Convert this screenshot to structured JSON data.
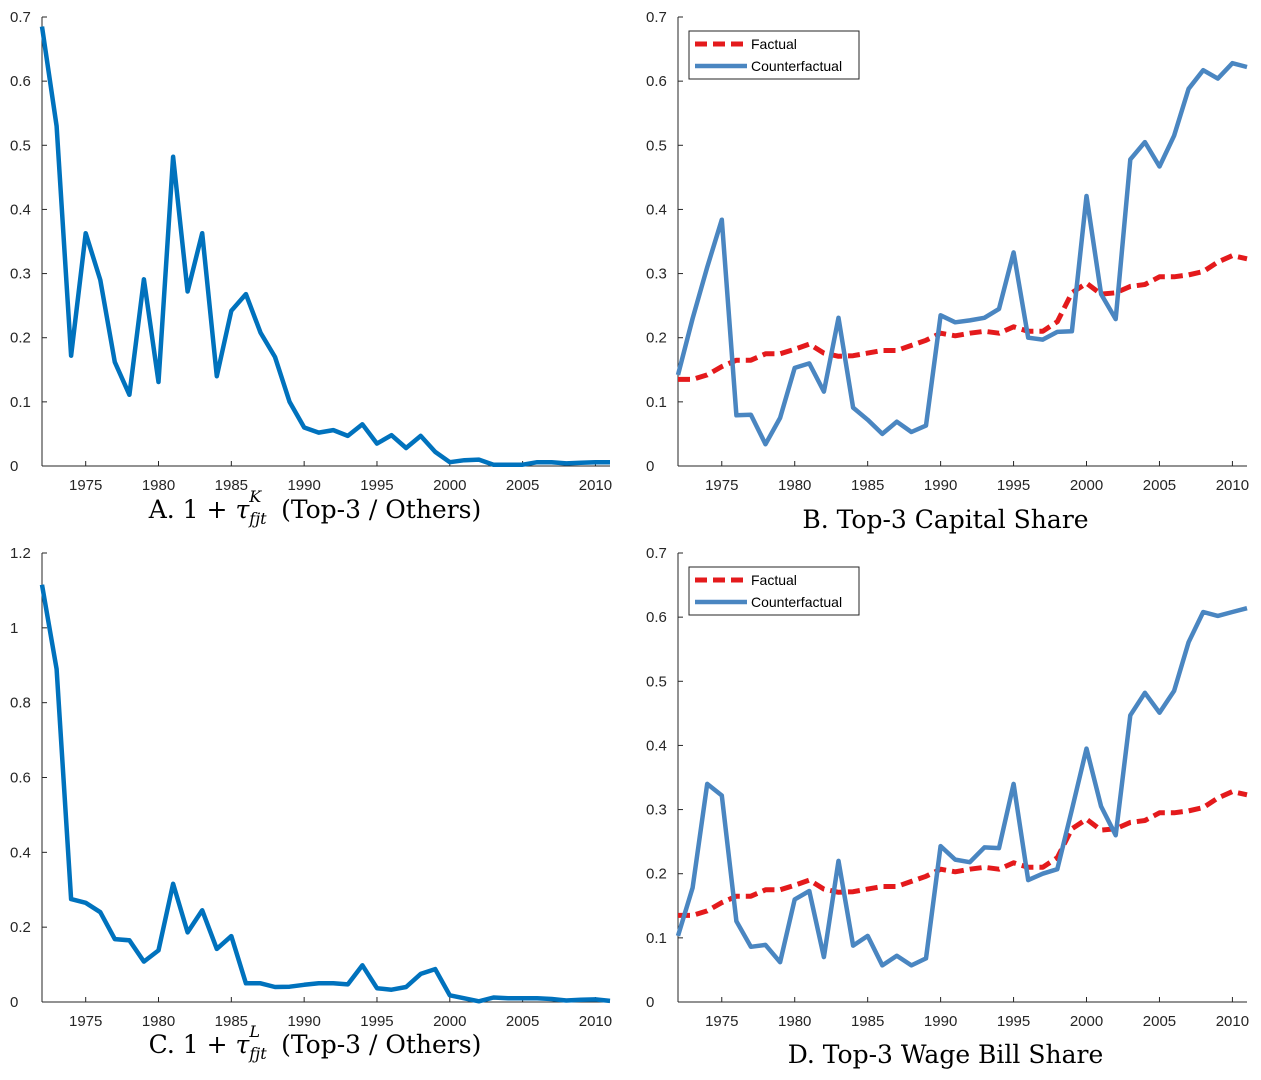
{
  "panels": [
    {
      "caption_prefix": "A. 1 +",
      "caption_symbol": "τ",
      "caption_sup": "K",
      "caption_sub": "fjt",
      "caption_suffix": "(Top-3 / Others)"
    },
    {
      "caption_text": "B. Top-3 Capital Share"
    },
    {
      "caption_prefix": "C. 1 +",
      "caption_symbol": "τ",
      "caption_sup": "L",
      "caption_sub": "fjt",
      "caption_suffix": "(Top-3 / Others)"
    },
    {
      "caption_text": "D. Top-3 Wage Bill Share"
    }
  ],
  "colors": {
    "wedge_line": "#0072BD",
    "factual": "#E41A1C",
    "counterfactual": "#4A86C1",
    "axis": "#262626"
  },
  "chart_data": [
    {
      "type": "line",
      "title": "A. 1 + τ^K_fjt (Top-3 / Others)",
      "xlim": [
        1972,
        2011
      ],
      "ylim": [
        0,
        0.7
      ],
      "xticks": [
        1975,
        1980,
        1985,
        1990,
        1995,
        2000,
        2005,
        2010
      ],
      "yticks": [
        "0",
        "0.1",
        "0.2",
        "0.3",
        "0.4",
        "0.5",
        "0.6",
        "0.7"
      ],
      "grid": false,
      "legend": "none",
      "x": [
        1972,
        1973,
        1974,
        1975,
        1976,
        1977,
        1978,
        1979,
        1980,
        1981,
        1982,
        1983,
        1984,
        1985,
        1986,
        1987,
        1988,
        1989,
        1990,
        1991,
        1992,
        1993,
        1994,
        1995,
        1996,
        1997,
        1998,
        1999,
        2000,
        2001,
        2002,
        2003,
        2004,
        2005,
        2006,
        2007,
        2008,
        2009,
        2010,
        2011
      ],
      "series": [
        {
          "color_key": "wedge_line",
          "style": "solid",
          "values": [
            0.685,
            0.53,
            0.172,
            0.363,
            0.29,
            0.162,
            0.111,
            0.291,
            0.131,
            0.482,
            0.272,
            0.363,
            0.14,
            0.242,
            0.268,
            0.208,
            0.17,
            0.1,
            0.06,
            0.052,
            0.056,
            0.047,
            0.065,
            0.035,
            0.048,
            0.028,
            0.047,
            0.022,
            0.006,
            0.009,
            0.01,
            0.002,
            0.002,
            0.002,
            0.006,
            0.006,
            0.004,
            0.005,
            0.006,
            0.006
          ]
        }
      ]
    },
    {
      "type": "line",
      "title": "B. Top-3 Capital Share",
      "xlim": [
        1972,
        2011
      ],
      "ylim": [
        0,
        0.7
      ],
      "xticks": [
        1975,
        1980,
        1985,
        1990,
        1995,
        2000,
        2005,
        2010
      ],
      "yticks": [
        "0",
        "0.1",
        "0.2",
        "0.3",
        "0.4",
        "0.5",
        "0.6",
        "0.7"
      ],
      "grid": false,
      "legend": "top-left",
      "x": [
        1972,
        1973,
        1974,
        1975,
        1976,
        1977,
        1978,
        1979,
        1980,
        1981,
        1982,
        1983,
        1984,
        1985,
        1986,
        1987,
        1988,
        1989,
        1990,
        1991,
        1992,
        1993,
        1994,
        1995,
        1996,
        1997,
        1998,
        1999,
        2000,
        2001,
        2002,
        2003,
        2004,
        2005,
        2006,
        2007,
        2008,
        2009,
        2010,
        2011
      ],
      "series": [
        {
          "name": "Factual",
          "color_key": "factual",
          "style": "dashed",
          "values": [
            0.135,
            0.135,
            0.142,
            0.155,
            0.165,
            0.165,
            0.175,
            0.175,
            0.182,
            0.19,
            0.176,
            0.171,
            0.172,
            0.176,
            0.18,
            0.18,
            0.188,
            0.196,
            0.207,
            0.203,
            0.207,
            0.21,
            0.207,
            0.217,
            0.21,
            0.21,
            0.225,
            0.27,
            0.285,
            0.268,
            0.27,
            0.28,
            0.283,
            0.295,
            0.295,
            0.298,
            0.303,
            0.318,
            0.328,
            0.323
          ]
        },
        {
          "name": "Counterfactual",
          "color_key": "counterfactual",
          "style": "solid",
          "values": [
            0.142,
            0.23,
            0.31,
            0.384,
            0.079,
            0.08,
            0.034,
            0.075,
            0.153,
            0.16,
            0.116,
            0.231,
            0.091,
            0.072,
            0.05,
            0.069,
            0.053,
            0.063,
            0.235,
            0.224,
            0.227,
            0.231,
            0.245,
            0.333,
            0.2,
            0.197,
            0.209,
            0.21,
            0.421,
            0.268,
            0.229,
            0.478,
            0.505,
            0.467,
            0.515,
            0.588,
            0.617,
            0.604,
            0.628,
            0.622
          ]
        }
      ]
    },
    {
      "type": "line",
      "title": "C. 1 + τ^L_fjt (Top-3 / Others)",
      "xlim": [
        1972,
        2011
      ],
      "ylim": [
        0,
        1.2
      ],
      "xticks": [
        1975,
        1980,
        1985,
        1990,
        1995,
        2000,
        2005,
        2010
      ],
      "yticks": [
        "0",
        "0.2",
        "0.4",
        "0.6",
        "0.8",
        "1",
        "1.2"
      ],
      "grid": false,
      "legend": "none",
      "x": [
        1972,
        1973,
        1974,
        1975,
        1976,
        1977,
        1978,
        1979,
        1980,
        1981,
        1982,
        1983,
        1984,
        1985,
        1986,
        1987,
        1988,
        1989,
        1990,
        1991,
        1992,
        1993,
        1994,
        1995,
        1996,
        1997,
        1998,
        1999,
        2000,
        2001,
        2002,
        2003,
        2004,
        2005,
        2006,
        2007,
        2008,
        2009,
        2010,
        2011
      ],
      "series": [
        {
          "color_key": "wedge_line",
          "style": "solid",
          "values": [
            1.115,
            0.89,
            0.275,
            0.265,
            0.24,
            0.168,
            0.165,
            0.108,
            0.138,
            0.316,
            0.186,
            0.245,
            0.142,
            0.176,
            0.05,
            0.05,
            0.04,
            0.041,
            0.046,
            0.05,
            0.05,
            0.047,
            0.098,
            0.037,
            0.033,
            0.04,
            0.075,
            0.088,
            0.018,
            0.01,
            0.002,
            0.012,
            0.01,
            0.01,
            0.01,
            0.008,
            0.004,
            0.006,
            0.007,
            0.003
          ]
        }
      ]
    },
    {
      "type": "line",
      "title": "D. Top-3 Wage Bill Share",
      "xlim": [
        1972,
        2011
      ],
      "ylim": [
        0,
        0.7
      ],
      "xticks": [
        1975,
        1980,
        1985,
        1990,
        1995,
        2000,
        2005,
        2010
      ],
      "yticks": [
        "0",
        "0.1",
        "0.2",
        "0.3",
        "0.4",
        "0.5",
        "0.6",
        "0.7"
      ],
      "grid": false,
      "legend": "top-left",
      "x": [
        1972,
        1973,
        1974,
        1975,
        1976,
        1977,
        1978,
        1979,
        1980,
        1981,
        1982,
        1983,
        1984,
        1985,
        1986,
        1987,
        1988,
        1989,
        1990,
        1991,
        1992,
        1993,
        1994,
        1995,
        1996,
        1997,
        1998,
        1999,
        2000,
        2001,
        2002,
        2003,
        2004,
        2005,
        2006,
        2007,
        2008,
        2009,
        2010,
        2011
      ],
      "series": [
        {
          "name": "Factual",
          "color_key": "factual",
          "style": "dashed",
          "values": [
            0.135,
            0.135,
            0.142,
            0.155,
            0.165,
            0.165,
            0.175,
            0.175,
            0.182,
            0.19,
            0.176,
            0.171,
            0.172,
            0.176,
            0.18,
            0.18,
            0.188,
            0.196,
            0.207,
            0.203,
            0.207,
            0.21,
            0.207,
            0.217,
            0.21,
            0.21,
            0.225,
            0.27,
            0.285,
            0.268,
            0.27,
            0.28,
            0.283,
            0.295,
            0.295,
            0.298,
            0.303,
            0.318,
            0.328,
            0.323
          ]
        },
        {
          "name": "Counterfactual",
          "color_key": "counterfactual",
          "style": "solid",
          "values": [
            0.103,
            0.178,
            0.34,
            0.322,
            0.126,
            0.086,
            0.089,
            0.062,
            0.16,
            0.173,
            0.07,
            0.22,
            0.088,
            0.103,
            0.057,
            0.072,
            0.057,
            0.068,
            0.243,
            0.222,
            0.218,
            0.241,
            0.24,
            0.34,
            0.19,
            0.2,
            0.207,
            0.3,
            0.395,
            0.305,
            0.26,
            0.447,
            0.482,
            0.451,
            0.485,
            0.561,
            0.608,
            0.602,
            0.608,
            0.614
          ]
        }
      ]
    }
  ]
}
